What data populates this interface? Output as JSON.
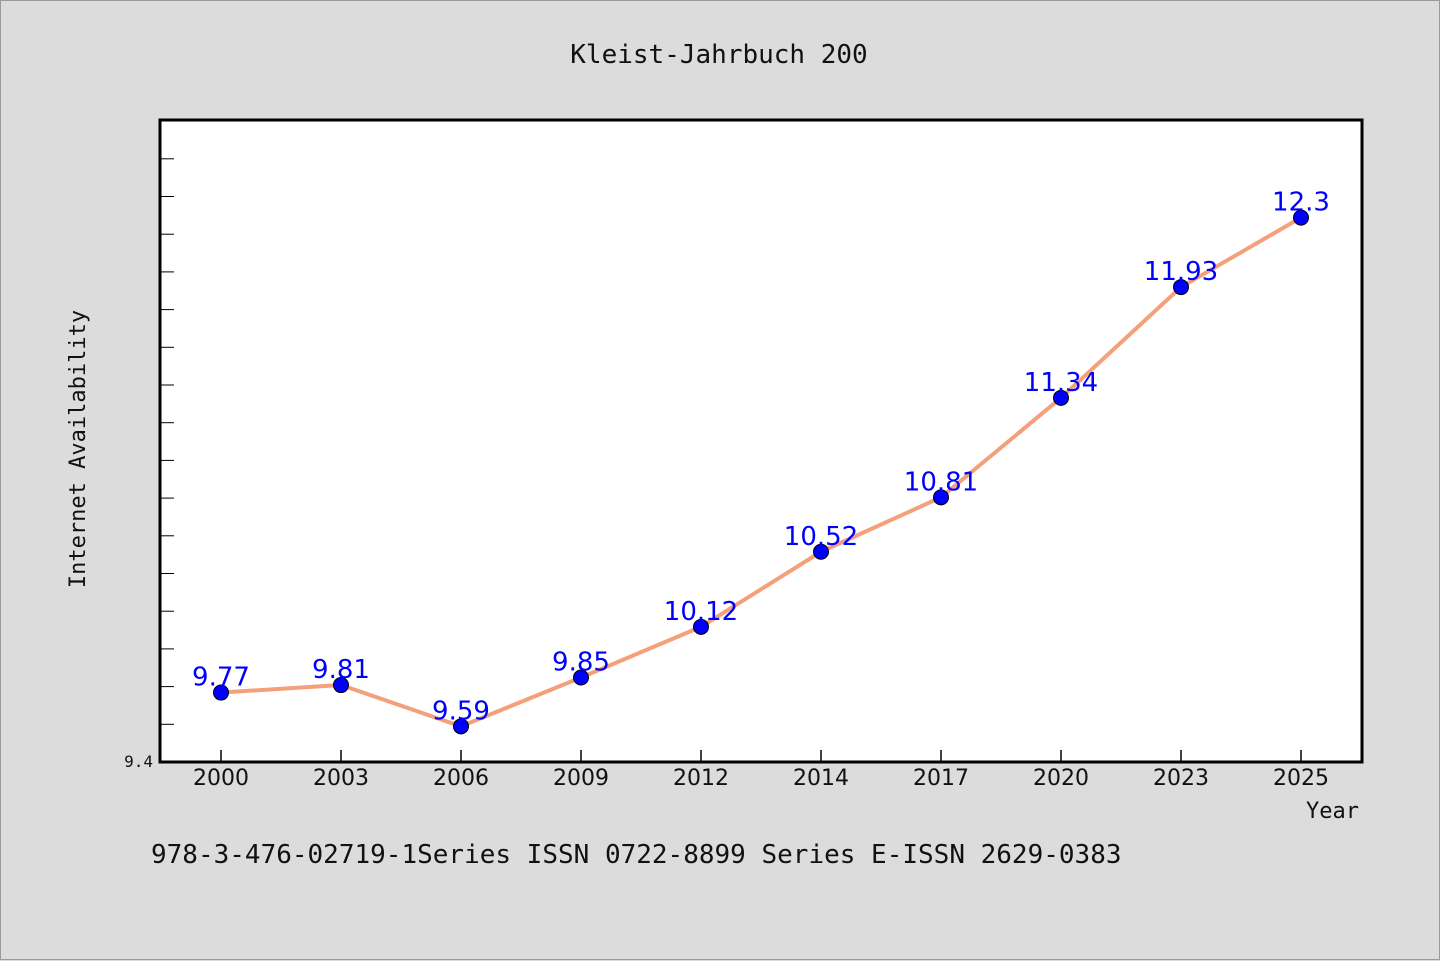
{
  "chart_data": {
    "type": "line",
    "title": "Kleist-Jahrbuch 200",
    "xlabel": "Year",
    "ylabel": "Internet Availability",
    "categories": [
      "2000",
      "2003",
      "2006",
      "2009",
      "2012",
      "2014",
      "2017",
      "2020",
      "2023",
      "2025"
    ],
    "series": [
      {
        "values": [
          9.77,
          9.81,
          9.59,
          9.85,
          10.12,
          10.52,
          10.81,
          11.34,
          11.93,
          12.3
        ]
      }
    ],
    "data_labels": [
      "9.77",
      "9.81",
      "9.59",
      "9.85",
      "10.12",
      "10.52",
      "10.81",
      "11.34",
      "11.93",
      "12.3"
    ],
    "y_tick_label": "9.4",
    "ylim": [
      9.4,
      12.82
    ],
    "grid": false,
    "line_color": "#f4a07a",
    "marker_color": "#0000ff",
    "label_color": "#0000ff",
    "background_color": "#dcdcdc",
    "plot_background": "#ffffff"
  },
  "footer_text": "978-3-476-02719-1Series ISSN 0722-8899 Series E-ISSN 2629-0383"
}
